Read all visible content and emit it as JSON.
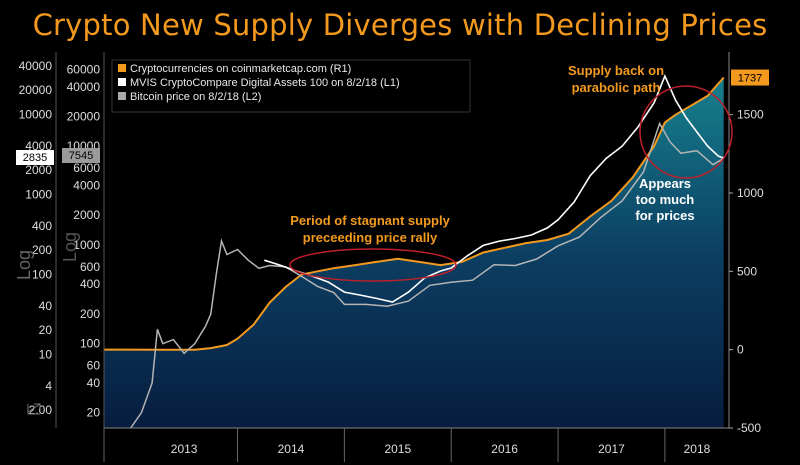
{
  "chart_data": {
    "type": "line",
    "title": "Crypto New Supply Diverges with Declining Prices",
    "x_ticks": [
      "2013",
      "2014",
      "2015",
      "2016",
      "2017",
      "2018"
    ],
    "left_axis1_ticks": [
      "40000",
      "20000",
      "10000",
      "4000",
      "2000",
      "1000",
      "400",
      "200",
      "100",
      "40",
      "20",
      "10",
      "4",
      "2.00"
    ],
    "left_axis2_ticks": [
      "60000",
      "40000",
      "20000",
      "10000",
      "6000",
      "4000",
      "2000",
      "1000",
      "600",
      "400",
      "200",
      "100",
      "60",
      "40",
      "20"
    ],
    "right_axis_ticks": [
      "1500",
      "1000",
      "500",
      "0",
      "-500"
    ],
    "left_axis_label": "Log",
    "left_axis_label2": "Log",
    "ylim_right": [
      -500,
      1900
    ],
    "ylim_left1_log": [
      1.2,
      60000
    ],
    "ylim_left2_log": [
      14,
      90000
    ],
    "last_value_labels": {
      "r1": "1737",
      "l1": "2835",
      "l2": "7545"
    },
    "legend": [
      {
        "name": "Cryptocurrencies on coinmarketcap.com (R1)",
        "color": "#f39a1e"
      },
      {
        "name": "MVIS CryptoCompare Digital Assets 100 on 8/2/18 (L1)",
        "color": "#ffffff"
      },
      {
        "name": "Bitcoin price on 8/2/18 (L2)",
        "color": "#aaaaaa"
      }
    ],
    "annotations": {
      "supply_back": [
        "Supply back on",
        "parabolic path"
      ],
      "stagnant": [
        "Period of stagnant supply",
        "preceeding price rally"
      ],
      "appears": [
        "Appears",
        "too much",
        "for prices"
      ]
    },
    "series": [
      {
        "name": "Cryptocurrencies on coinmarketcap.com (R1)",
        "axis": "right",
        "x": [
          2013.25,
          2013.6,
          2013.75,
          2013.9,
          2014.0,
          2014.15,
          2014.3,
          2014.45,
          2014.6,
          2014.75,
          2014.9,
          2015.1,
          2015.3,
          2015.5,
          2015.7,
          2015.9,
          2016.1,
          2016.3,
          2016.5,
          2016.7,
          2016.9,
          2017.1,
          2017.3,
          2017.5,
          2017.7,
          2017.9,
          2018.0,
          2018.1,
          2018.25,
          2018.4,
          2018.55
        ],
        "values": [
          0,
          0,
          10,
          30,
          70,
          160,
          300,
          400,
          480,
          500,
          520,
          540,
          560,
          580,
          560,
          540,
          560,
          620,
          650,
          680,
          700,
          740,
          850,
          950,
          1100,
          1300,
          1450,
          1500,
          1560,
          1620,
          1737
        ]
      },
      {
        "name": "MVIS CryptoCompare Digital Assets 100 on 8/2/18 (L1)",
        "axis": "left1",
        "x": [
          2014.25,
          2014.4,
          2014.55,
          2014.7,
          2014.85,
          2015.0,
          2015.15,
          2015.3,
          2015.45,
          2015.6,
          2015.75,
          2015.9,
          2016.0,
          2016.15,
          2016.3,
          2016.45,
          2016.6,
          2016.75,
          2016.9,
          2017.0,
          2017.15,
          2017.3,
          2017.45,
          2017.6,
          2017.75,
          2017.9,
          2018.0,
          2018.1,
          2018.2,
          2018.3,
          2018.4,
          2018.5,
          2018.55
        ],
        "values": [
          150,
          130,
          110,
          95,
          80,
          60,
          55,
          50,
          45,
          60,
          90,
          110,
          120,
          170,
          230,
          260,
          280,
          310,
          380,
          480,
          800,
          1700,
          2800,
          4000,
          7000,
          14000,
          30000,
          15000,
          9000,
          6000,
          4000,
          3000,
          2835
        ]
      },
      {
        "name": "Bitcoin price on 8/2/18 (L2)",
        "axis": "left2",
        "x": [
          2013.0,
          2013.1,
          2013.2,
          2013.25,
          2013.3,
          2013.4,
          2013.5,
          2013.6,
          2013.7,
          2013.75,
          2013.8,
          2013.85,
          2013.9,
          2014.0,
          2014.1,
          2014.2,
          2014.3,
          2014.45,
          2014.6,
          2014.75,
          2014.9,
          2015.0,
          2015.2,
          2015.4,
          2015.6,
          2015.8,
          2016.0,
          2016.2,
          2016.4,
          2016.6,
          2016.8,
          2017.0,
          2017.2,
          2017.4,
          2017.6,
          2017.8,
          2017.95,
          2018.05,
          2018.15,
          2018.3,
          2018.45,
          2018.55
        ],
        "values": [
          14,
          20,
          40,
          140,
          100,
          110,
          80,
          100,
          150,
          200,
          500,
          1100,
          800,
          900,
          700,
          580,
          620,
          600,
          480,
          380,
          330,
          250,
          250,
          240,
          270,
          390,
          420,
          440,
          630,
          620,
          720,
          980,
          1200,
          1900,
          2800,
          5500,
          17000,
          11000,
          8500,
          9000,
          6500,
          7545
        ]
      }
    ]
  }
}
